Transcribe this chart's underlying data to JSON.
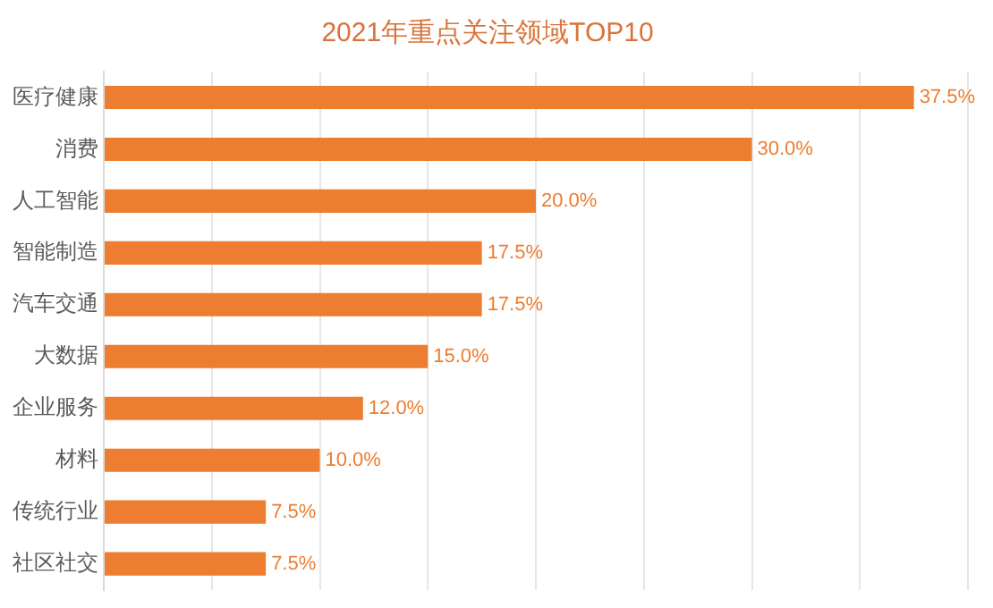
{
  "chart_data": {
    "type": "bar",
    "orientation": "horizontal",
    "title": "2021年重点关注领域TOP10",
    "categories": [
      "医疗健康",
      "消费",
      "人工智能",
      "智能制造",
      "汽车交通",
      "大数据",
      "企业服务",
      "材料",
      "传统行业",
      "社区社交"
    ],
    "values": [
      37.5,
      30.0,
      20.0,
      17.5,
      17.5,
      15.0,
      12.0,
      10.0,
      7.5,
      7.5
    ],
    "value_labels": [
      "37.5%",
      "30.0%",
      "20.0%",
      "17.5%",
      "17.5%",
      "15.0%",
      "12.0%",
      "10.0%",
      "7.5%",
      "7.5%"
    ],
    "color": "#ed7d31",
    "xlim": [
      0,
      40
    ],
    "xticks": [
      {
        "value": 0,
        "label": null
      },
      {
        "value": 5,
        "label": null
      },
      {
        "value": 10,
        "label": null
      },
      {
        "value": 15,
        "label": null
      },
      {
        "value": 20,
        "label": null
      },
      {
        "value": 25,
        "label": null
      },
      {
        "value": 30,
        "label": null
      },
      {
        "value": 35,
        "label": null
      },
      {
        "value": 40,
        "label": null
      }
    ],
    "grid": "x",
    "tick_labels": "y",
    "legend": false
  }
}
